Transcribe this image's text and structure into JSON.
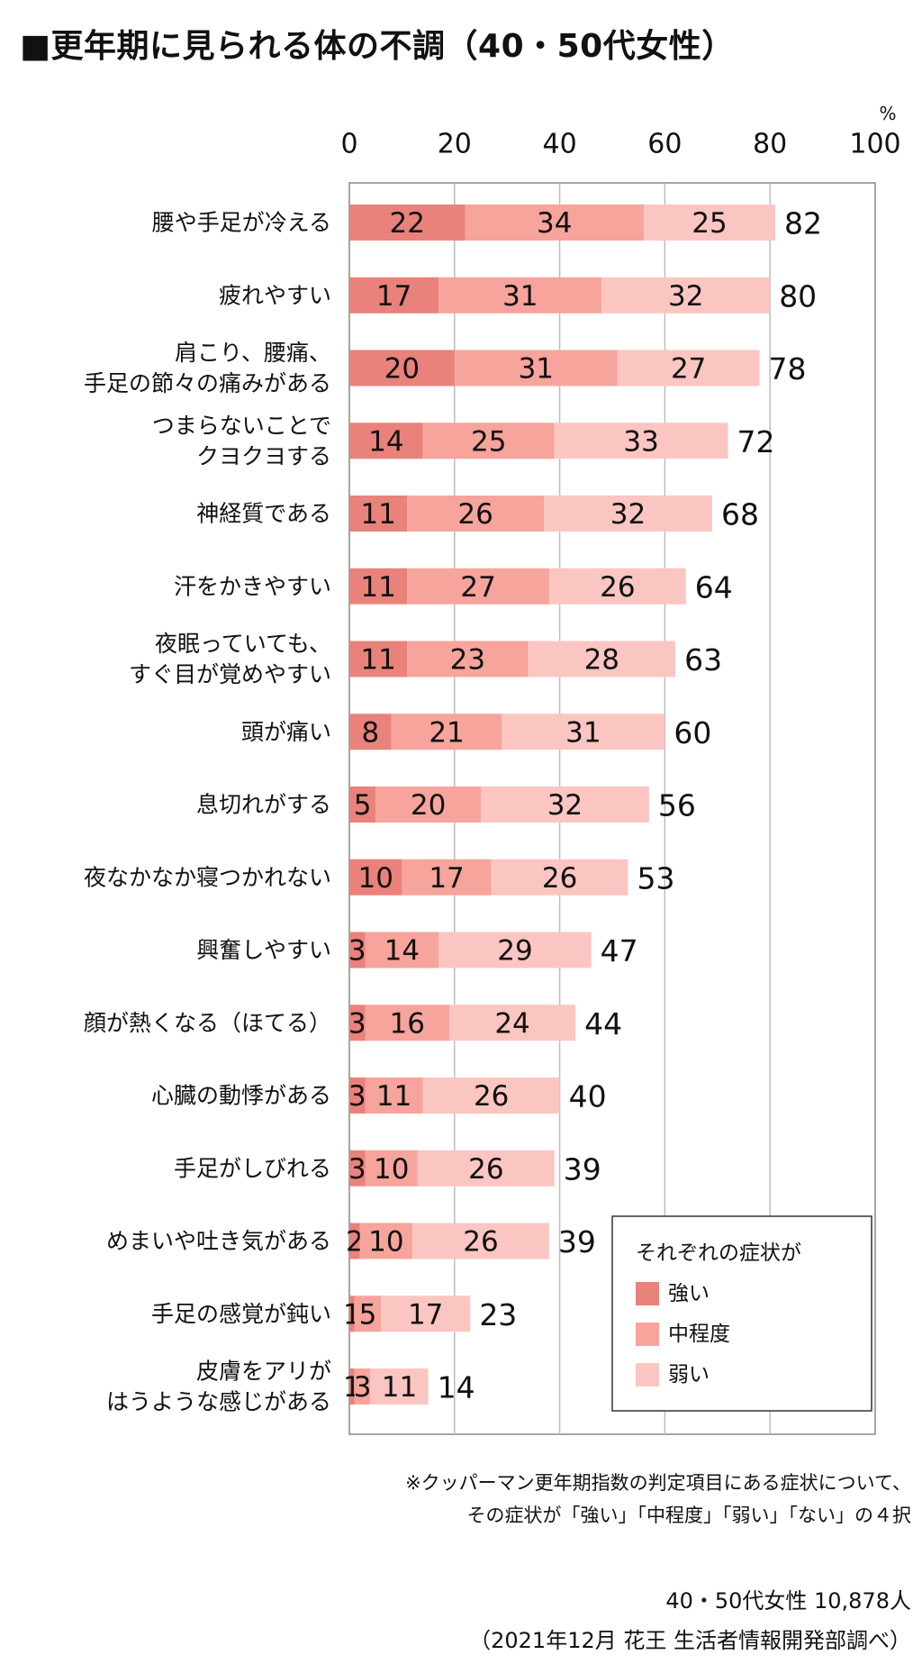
{
  "title": "■更年期に見られる体の不調（40・50代女性）",
  "colors": {
    "strong": "#e9827b",
    "moderate": "#f6a49c",
    "weak": "#fbc6c1",
    "grid": "#bdbdbd",
    "axis": "#888888"
  },
  "chart_data": {
    "type": "bar",
    "orientation": "horizontal",
    "stacked": true,
    "unit": "%",
    "xlim": [
      0,
      100
    ],
    "xticks": [
      "0",
      "20",
      "40",
      "60",
      "80",
      "100"
    ],
    "grid": true,
    "legend": {
      "title": "それぞれの症状が",
      "position": "bottom-right"
    },
    "categories": [
      [
        "腰や手足が冷える"
      ],
      [
        "疲れやすい"
      ],
      [
        "肩こり、腰痛、",
        "手足の節々の痛みがある"
      ],
      [
        "つまらないことで",
        "クヨクヨする"
      ],
      [
        "神経質である"
      ],
      [
        "汗をかきやすい"
      ],
      [
        "夜眠っていても、",
        "すぐ目が覚めやすい"
      ],
      [
        "頭が痛い"
      ],
      [
        "息切れがする"
      ],
      [
        "夜なかなか寝つかれない"
      ],
      [
        "興奮しやすい"
      ],
      [
        "顔が熱くなる（ほてる）"
      ],
      [
        "心臓の動悸がある"
      ],
      [
        "手足がしびれる"
      ],
      [
        "めまいや吐き気がある"
      ],
      [
        "手足の感覚が鈍い"
      ],
      [
        "皮膚をアリが",
        "はうような感じがある"
      ]
    ],
    "series": [
      {
        "name": "強い",
        "values": [
          22,
          17,
          20,
          14,
          11,
          11,
          11,
          8,
          5,
          10,
          3,
          3,
          3,
          3,
          2,
          1,
          1
        ]
      },
      {
        "name": "中程度",
        "values": [
          34,
          31,
          31,
          25,
          26,
          27,
          23,
          21,
          20,
          17,
          14,
          16,
          11,
          10,
          10,
          5,
          3
        ]
      },
      {
        "name": "弱い",
        "values": [
          25,
          32,
          27,
          33,
          32,
          26,
          28,
          31,
          32,
          26,
          29,
          24,
          26,
          26,
          26,
          17,
          11
        ]
      }
    ],
    "totals": [
      82,
      80,
      78,
      72,
      68,
      64,
      63,
      60,
      56,
      53,
      47,
      44,
      40,
      39,
      39,
      23,
      14
    ]
  },
  "note": {
    "line1": "※クッパーマン更年期指数の判定項目にある症状について、",
    "line2": "その症状が「強い」「中程度」「弱い」「ない」の４択"
  },
  "footer": {
    "line1": "40・50代女性 10,878人",
    "line2": "（2021年12月 花王 生活者情報開発部調べ）"
  }
}
